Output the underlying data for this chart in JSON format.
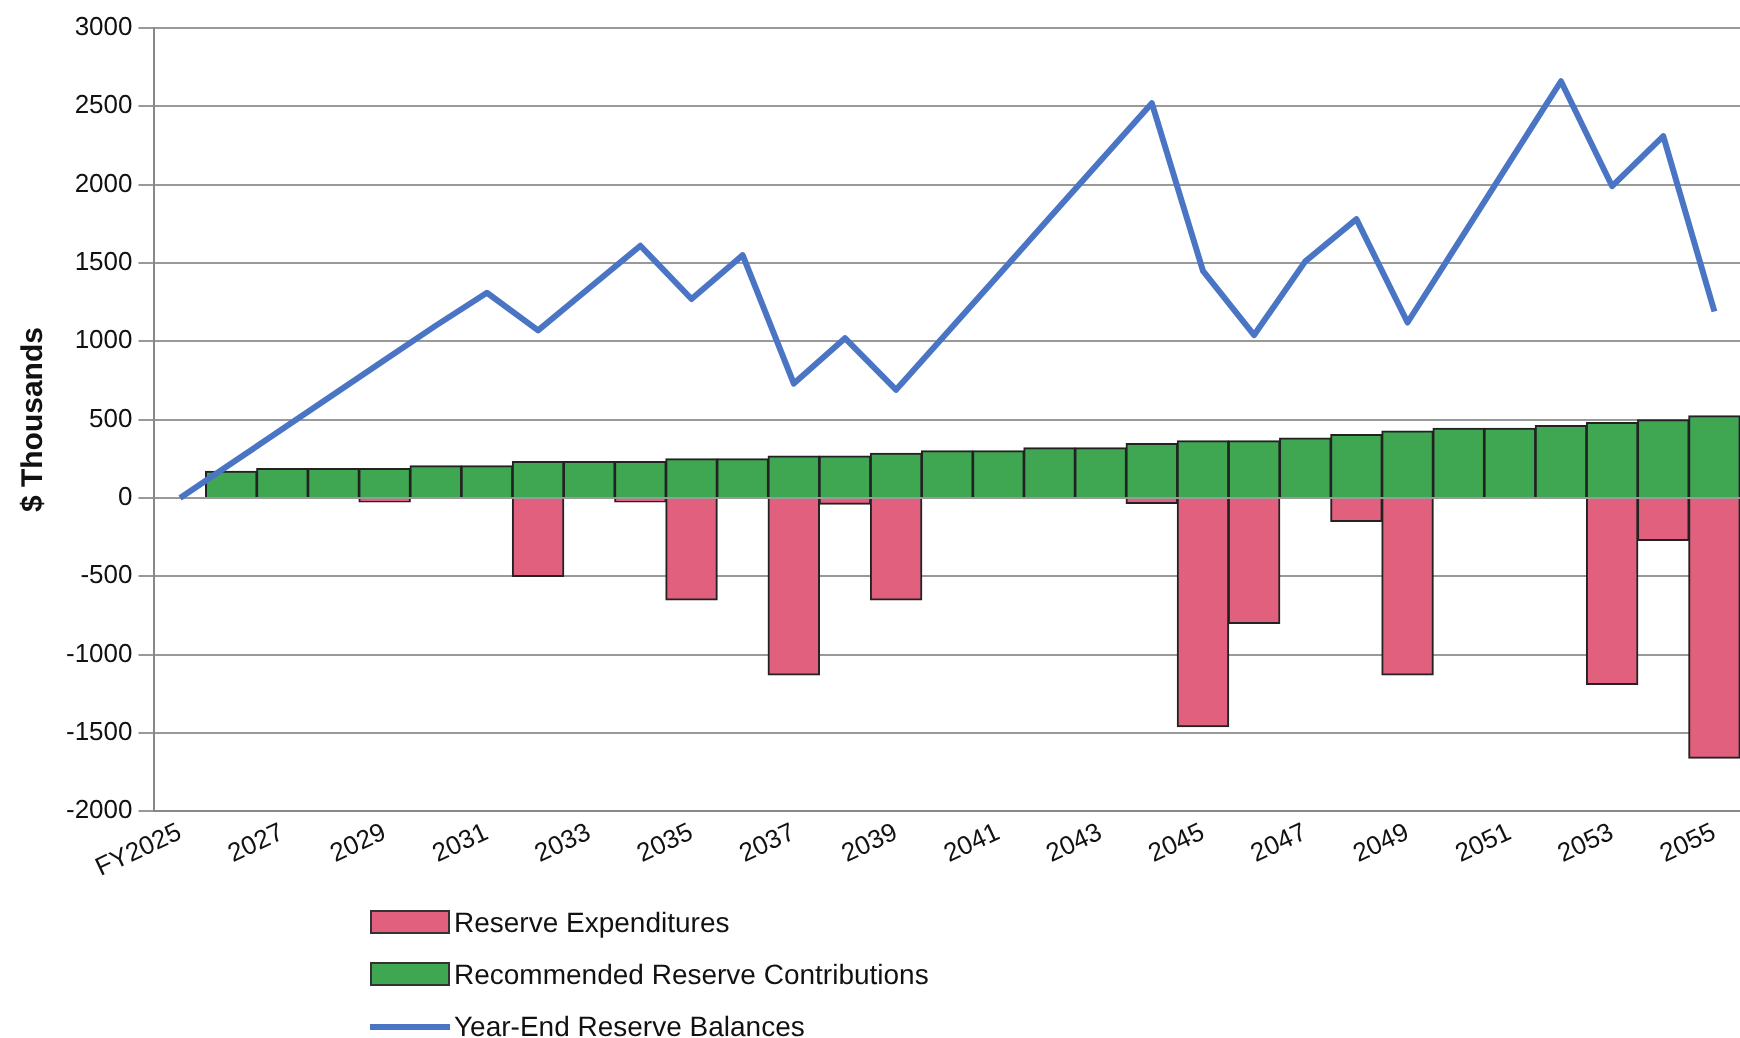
{
  "chart_data": {
    "type": "bar",
    "stacked": true,
    "ylabel": "$ Thousands",
    "categories": [
      "FY2025",
      null,
      "2027",
      null,
      "2029",
      null,
      "2031",
      null,
      "2033",
      null,
      "2035",
      null,
      "2037",
      null,
      "2039",
      null,
      "2041",
      null,
      "2043",
      null,
      "2045",
      null,
      "2047",
      null,
      "2049",
      null,
      "2051",
      null,
      "2053",
      null,
      "2055"
    ],
    "series": [
      {
        "name": "Reserve Expenditures",
        "color": "#e0607e",
        "values": [
          0,
          0,
          0,
          0,
          -25,
          0,
          0,
          -500,
          0,
          -25,
          -650,
          0,
          -1130,
          -40,
          -650,
          0,
          0,
          0,
          0,
          -35,
          -1460,
          -800,
          0,
          -150,
          -1130,
          0,
          0,
          0,
          -1190,
          -270,
          -1660
        ]
      },
      {
        "name": "Recommended Reserve Contributions",
        "color": "#3fa652",
        "values": [
          0,
          170,
          187,
          187,
          187,
          204,
          204,
          231,
          231,
          231,
          249,
          249,
          267,
          267,
          284,
          300,
          300,
          320,
          320,
          347,
          364,
          364,
          382,
          404,
          427,
          444,
          444,
          462,
          480,
          498,
          524
        ]
      },
      {
        "name": "Year-End Reserve Balances",
        "type": "line",
        "color": "#4a74c4",
        "values": [
          0,
          220,
          440,
          660,
          880,
          1100,
          1310,
          1070,
          1340,
          1610,
          1270,
          1550,
          730,
          1020,
          690,
          1056,
          1422,
          1788,
          2154,
          2520,
          1450,
          1040,
          1510,
          1780,
          1120,
          1633,
          2147,
          2660,
          1990,
          2310,
          1190
        ]
      }
    ],
    "ylim": [
      -2000,
      3000
    ],
    "yticks": [
      -2000,
      -1500,
      -1000,
      -500,
      0,
      500,
      1000,
      1500,
      2000,
      2500,
      3000
    ],
    "grid": "y",
    "legend": "bottom",
    "marker": "none"
  }
}
